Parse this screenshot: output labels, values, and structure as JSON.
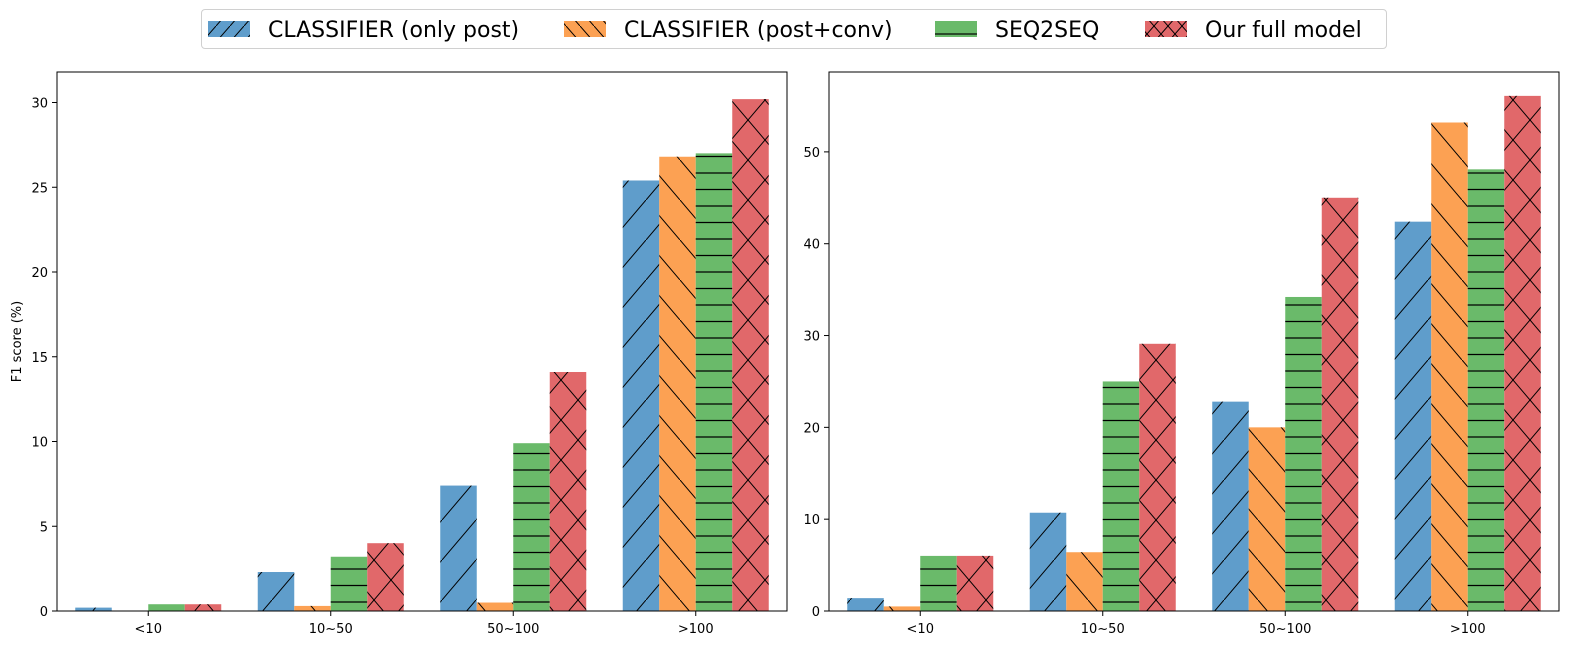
{
  "legend": {
    "entries": [
      {
        "label": "CLASSIFIER (only post)",
        "color": "#5f9dcb",
        "hatch": "slash"
      },
      {
        "label": "CLASSIFIER (post+conv)",
        "color": "#fca153",
        "hatch": "backslash"
      },
      {
        "label": "SEQ2SEQ",
        "color": "#6aba6a",
        "hatch": "horizontal"
      },
      {
        "label": "Our full model",
        "color": "#e1686a",
        "hatch": "cross"
      }
    ],
    "placement": "top-center"
  },
  "chart_data": [
    {
      "type": "bar",
      "categories": [
        "<10",
        "10~50",
        "50~100",
        ">100"
      ],
      "ylabel": "F1 score (%)",
      "xlabel": "",
      "ylim": [
        0,
        31.8
      ],
      "yticks": [
        0,
        5,
        10,
        15,
        20,
        25,
        30
      ],
      "grid": false,
      "series": [
        {
          "name": "CLASSIFIER (only post)",
          "values": [
            0.2,
            2.3,
            7.4,
            25.4
          ]
        },
        {
          "name": "CLASSIFIER (post+conv)",
          "values": [
            0.0,
            0.3,
            0.5,
            26.8
          ]
        },
        {
          "name": "SEQ2SEQ",
          "values": [
            0.4,
            3.2,
            9.9,
            27.0
          ]
        },
        {
          "name": "Our full model",
          "values": [
            0.4,
            4.0,
            14.1,
            30.2
          ]
        }
      ]
    },
    {
      "type": "bar",
      "categories": [
        "<10",
        "10~50",
        "50~100",
        ">100"
      ],
      "ylabel": "",
      "xlabel": "",
      "ylim": [
        0,
        58.7
      ],
      "yticks": [
        0,
        10,
        20,
        30,
        40,
        50
      ],
      "grid": false,
      "series": [
        {
          "name": "CLASSIFIER (only post)",
          "values": [
            1.4,
            10.7,
            22.8,
            42.4
          ]
        },
        {
          "name": "CLASSIFIER (post+conv)",
          "values": [
            0.5,
            6.4,
            20.0,
            53.2
          ]
        },
        {
          "name": "SEQ2SEQ",
          "values": [
            6.0,
            25.0,
            34.2,
            48.1
          ]
        },
        {
          "name": "Our full model",
          "values": [
            6.0,
            29.1,
            45.0,
            56.1
          ]
        }
      ]
    }
  ]
}
